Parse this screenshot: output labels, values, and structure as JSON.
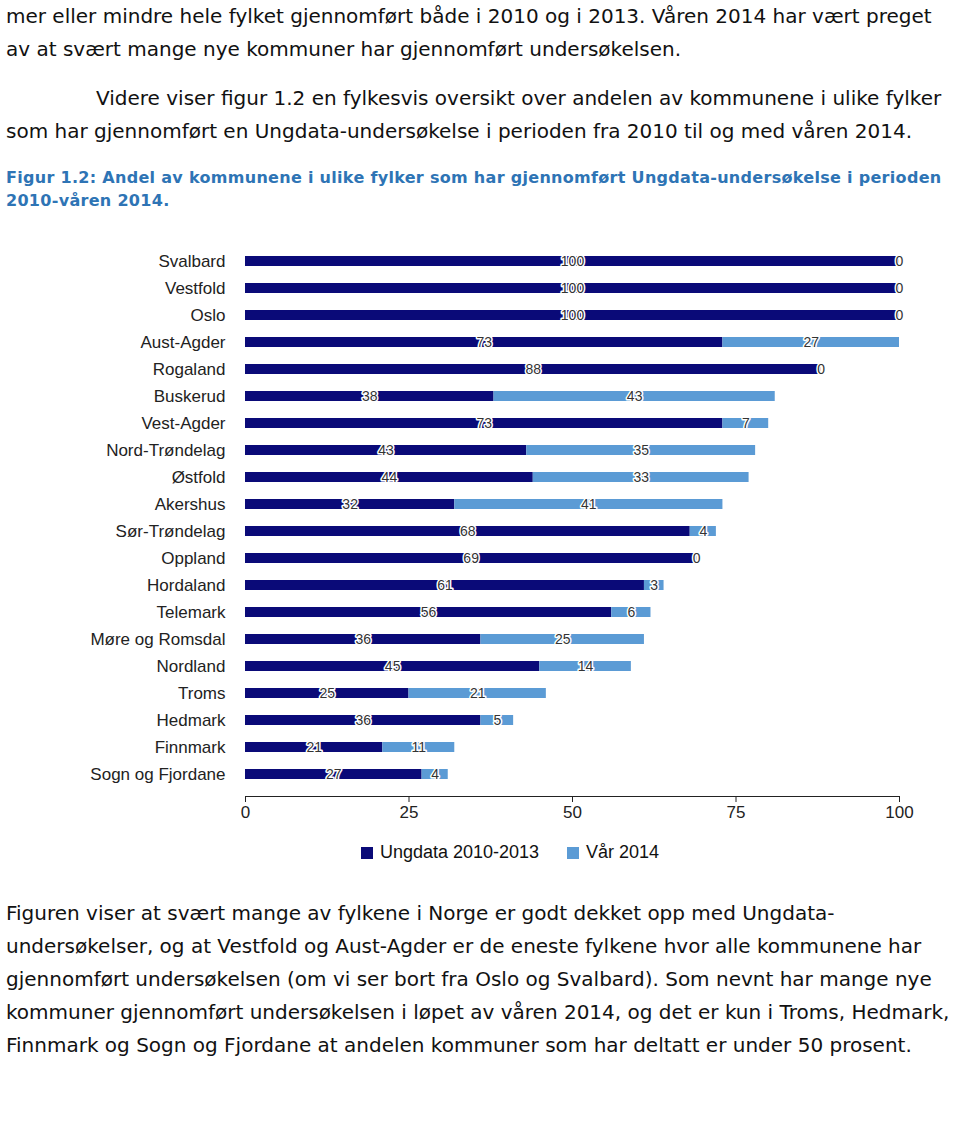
{
  "text_top": [
    "mer eller mindre hele fylket gjennomført både i 2010 og i 2013. Våren 2014 har vært preget av at svært mange nye kommuner har gjennomført undersøkelsen.",
    "Videre viser figur 1.2 en fylkesvis oversikt over andelen av kommunene i ulike fylker som har gjennomført en Ungdata-undersøkelse i perioden fra 2010 til og med våren 2014."
  ],
  "figure_caption": "Figur 1.2: Andel av kommunene i ulike fylker som har gjennomført Ungdata-undersøkelse i perioden 2010-våren 2014.",
  "chart_data": {
    "type": "bar",
    "orientation": "horizontal",
    "stacked": true,
    "data_labels": true,
    "categories": [
      "Svalbard",
      "Vestfold",
      "Oslo",
      "Aust-Agder",
      "Rogaland",
      "Buskerud",
      "Vest-Agder",
      "Nord-Trøndelag",
      "Østfold",
      "Akershus",
      "Sør-Trøndelag",
      "Oppland",
      "Hordaland",
      "Telemark",
      "Møre og Romsdal",
      "Nordland",
      "Troms",
      "Hedmark",
      "Finnmark",
      "Sogn og Fjordane"
    ],
    "series": [
      {
        "name": "Ungdata 2010-2013",
        "color": "#0a0a78",
        "values": [
          100,
          100,
          100,
          73,
          88,
          38,
          73,
          43,
          44,
          32,
          68,
          69,
          61,
          56,
          36,
          45,
          25,
          36,
          21,
          27
        ]
      },
      {
        "name": "Vår 2014",
        "color": "#5b9bd5",
        "values": [
          0,
          0,
          0,
          27,
          0,
          43,
          7,
          35,
          33,
          41,
          4,
          0,
          3,
          6,
          25,
          14,
          21,
          5,
          11,
          4
        ]
      }
    ],
    "xlim": [
      0,
      100
    ],
    "xticks": [
      0,
      25,
      50,
      75,
      100
    ],
    "grid": false,
    "legend": "bottom"
  },
  "text_bottom": [
    "Figuren viser at svært mange av fylkene i Norge er godt dekket opp med Ungdata-undersøkelser, og at Vestfold og Aust-Agder er de eneste fylkene hvor alle kommunene har gjennomført undersøkelsen (om vi ser bort fra Oslo og Svalbard). Som nevnt har mange nye kommuner gjennomført undersøkelsen i løpet av våren 2014, og det er kun i Troms, Hedmark, Finnmark og Sogn og Fjordane at andelen kommuner som har deltatt er under 50 prosent."
  ]
}
